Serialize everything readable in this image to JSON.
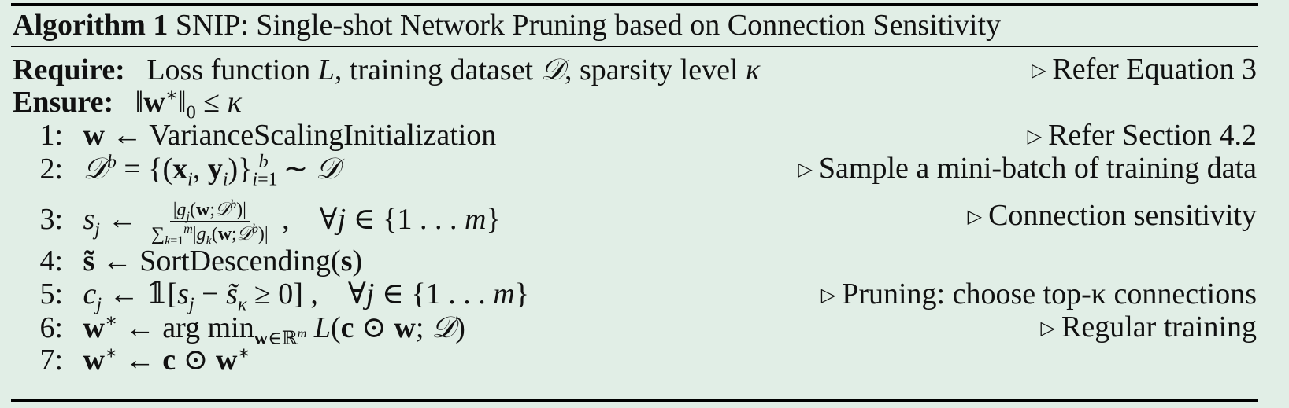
{
  "caption": {
    "label": "Algorithm 1",
    "title": "SNIP: Single-shot Network Pruning based on Connection Sensitivity"
  },
  "require": {
    "keyword": "Require:",
    "text": "Loss function L, training dataset 𝒟, sparsity level κ",
    "comment": "Refer Equation 3"
  },
  "ensure": {
    "keyword": "Ensure:",
    "text": "‖w*‖₀ ≤ κ"
  },
  "steps": [
    {
      "num": "1:",
      "text": "w ← VarianceScalingInitialization",
      "comment": "Refer Section 4.2"
    },
    {
      "num": "2:",
      "text": "𝒟ᵇ = {(xᵢ, yᵢ)}ᵢ₌₁ᵇ ∼ 𝒟",
      "comment": "Sample a mini-batch of training data"
    },
    {
      "num": "3:",
      "text": "sⱼ ← |gⱼ(w;𝒟ᵇ)| / Σₖ₌₁ᵐ |gₖ(w;𝒟ᵇ)| ,   ∀j ∈ {1 . . . m}",
      "comment": "Connection sensitivity"
    },
    {
      "num": "4:",
      "text": "s̃ ← SortDescending(s)",
      "comment": ""
    },
    {
      "num": "5:",
      "text": "cⱼ ← 𝟙[sⱼ − s̃κ ≥ 0] ,   ∀j ∈ {1 . . . m}",
      "comment": "Pruning: choose top-κ connections"
    },
    {
      "num": "6:",
      "text": "w* ← arg min w∈ℝᵐ L(c ⊙ w; 𝒟)",
      "comment": "Regular training"
    },
    {
      "num": "7:",
      "text": "w* ← c ⊙ w*",
      "comment": ""
    }
  ]
}
